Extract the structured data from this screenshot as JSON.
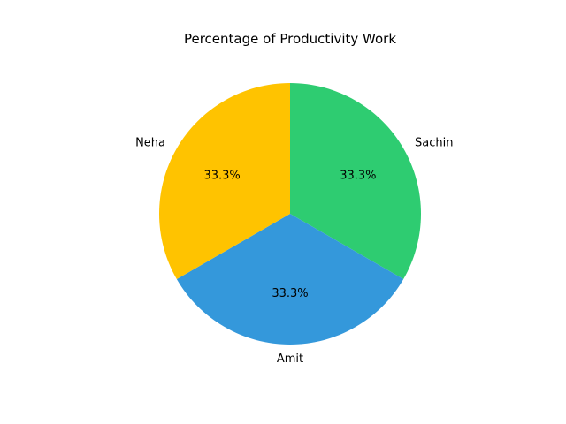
{
  "chart_data": {
    "type": "pie",
    "title": "Percentage of Productivity Work",
    "slices": [
      {
        "label": "Sachin",
        "value": 33.3,
        "pct_label": "33.3%",
        "color": "#2ecc71"
      },
      {
        "label": "Amit",
        "value": 33.3,
        "pct_label": "33.3%",
        "color": "#3498db"
      },
      {
        "label": "Neha",
        "value": 33.3,
        "pct_label": "33.3%",
        "color": "#ffc300"
      }
    ],
    "start_angle_deg": 90,
    "direction": "clockwise",
    "legend": "none"
  }
}
